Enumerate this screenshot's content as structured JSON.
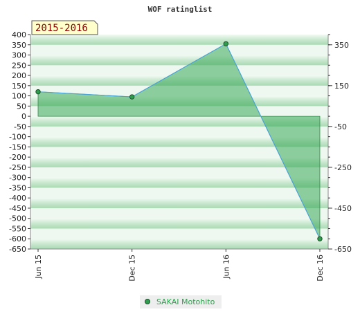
{
  "chart_data": {
    "type": "area",
    "title": "WOF ratinglist",
    "season_label": "2015-2016",
    "categories": [
      "Jun 15",
      "Dec 15",
      "Jun 16",
      "Dec 16"
    ],
    "series": [
      {
        "name": "SAKAI Motohito",
        "values": [
          120,
          95,
          355,
          -600
        ]
      }
    ],
    "ylim": [
      -650,
      400
    ],
    "y_ticks_left": [
      400,
      350,
      300,
      250,
      200,
      150,
      100,
      50,
      0,
      -50,
      -100,
      -150,
      -200,
      -250,
      -300,
      -350,
      -400,
      -450,
      -500,
      -550,
      -600,
      -650
    ],
    "y_ticks_right": [
      350,
      150,
      -50,
      -250,
      -450,
      -650
    ],
    "grid": true,
    "legend_position": "bottom-center",
    "colors": {
      "line": "#4aa3d8",
      "area": "#3aa95a",
      "marker": "#2e9e4e",
      "legend_text": "#2e9e4e",
      "season_bg": "#ffffcc",
      "season_text": "#8b0000"
    }
  }
}
